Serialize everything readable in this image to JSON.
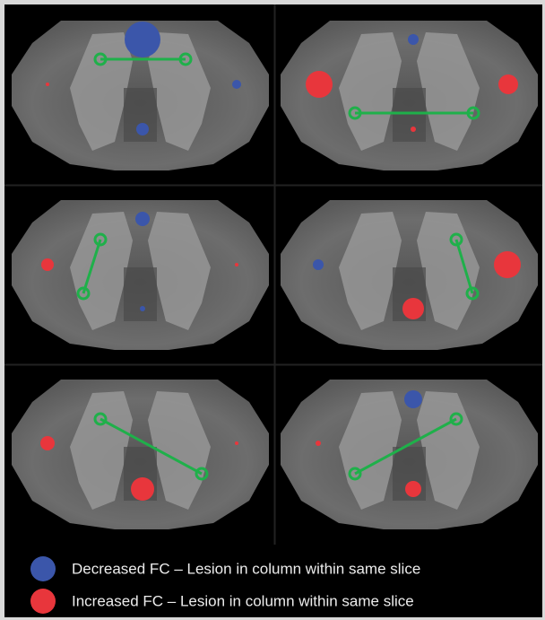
{
  "legend": {
    "items": [
      {
        "label": "Decreased FC – Lesion in column within same slice"
      },
      {
        "label": "Increased FC – Lesion in column within same slice"
      }
    ]
  }
}
